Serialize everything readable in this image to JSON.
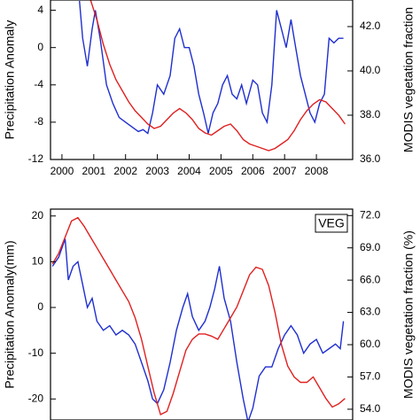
{
  "chart_data": [
    {
      "type": "line",
      "ylabel": "Precipitation Anomaly",
      "y2label": "MODIS vegetation fraction",
      "xlim": [
        1999.64,
        2009.14
      ],
      "xticks": [
        2000,
        2001,
        2002,
        2003,
        2004,
        2005,
        2006,
        2007,
        2008
      ],
      "ylim": [
        -12,
        5.1
      ],
      "yticks": [
        -12,
        -8,
        -4,
        0,
        4
      ],
      "y2lim": [
        36,
        43.2
      ],
      "y2ticks": [
        {
          "value": 36,
          "label": "36.0"
        },
        {
          "value": 38,
          "label": "38.0"
        },
        {
          "value": 40,
          "label": "40.0"
        },
        {
          "value": 42,
          "label": "42.0"
        }
      ],
      "series": [
        {
          "color": "#1f2fd0",
          "axis": "y",
          "x": [
            2000.55,
            2000.65,
            2000.8,
            2000.95,
            2001.05,
            2001.2,
            2001.4,
            2001.6,
            2001.8,
            2002.0,
            2002.2,
            2002.4,
            2002.55,
            2002.7,
            2002.85,
            2003.0,
            2003.2,
            2003.4,
            2003.55,
            2003.7,
            2003.85,
            2004.0,
            2004.15,
            2004.3,
            2004.45,
            2004.6,
            2004.75,
            2004.9,
            2005.05,
            2005.2,
            2005.35,
            2005.5,
            2005.65,
            2005.8,
            2006.0,
            2006.15,
            2006.3,
            2006.45,
            2006.6,
            2006.75,
            2006.9,
            2007.05,
            2007.2,
            2007.35,
            2007.5,
            2007.65,
            2007.8,
            2007.95,
            2008.1,
            2008.25,
            2008.4,
            2008.55,
            2008.7,
            2008.85
          ],
          "values": [
            5,
            1,
            -2,
            2,
            4,
            1,
            -4,
            -6,
            -7.5,
            -8,
            -8.5,
            -9,
            -8.8,
            -9.2,
            -7,
            -4,
            -5,
            -3,
            1,
            2,
            0,
            0,
            -2,
            -5,
            -7,
            -9.2,
            -7,
            -6,
            -4,
            -3,
            -5,
            -5.5,
            -4,
            -6,
            -3.5,
            -4,
            -7,
            -8,
            -4,
            4,
            2,
            0,
            3,
            0,
            -3,
            -5,
            -7,
            -8,
            -6,
            -5,
            1,
            0.5,
            1,
            1
          ]
        },
        {
          "color": "#e02020",
          "axis": "y2",
          "x": [
            2000.9,
            2001.1,
            2001.3,
            2001.5,
            2001.7,
            2001.9,
            2002.1,
            2002.3,
            2002.5,
            2002.7,
            2002.9,
            2003.1,
            2003.3,
            2003.5,
            2003.7,
            2003.9,
            2004.1,
            2004.3,
            2004.5,
            2004.7,
            2004.9,
            2005.1,
            2005.3,
            2005.5,
            2005.7,
            2005.9,
            2006.1,
            2006.3,
            2006.5,
            2006.7,
            2006.9,
            2007.1,
            2007.3,
            2007.5,
            2007.7,
            2007.9,
            2008.1,
            2008.3,
            2008.5,
            2008.7,
            2008.9
          ],
          "values": [
            43.2,
            42.3,
            41.2,
            40.3,
            39.6,
            39.1,
            38.6,
            38.2,
            37.9,
            37.6,
            37.4,
            37.5,
            37.8,
            38.1,
            38.3,
            38.1,
            37.8,
            37.4,
            37.2,
            37.1,
            37.3,
            37.5,
            37.6,
            37.3,
            36.9,
            36.7,
            36.6,
            36.5,
            36.4,
            36.5,
            36.7,
            36.9,
            37.3,
            37.8,
            38.2,
            38.5,
            38.7,
            38.6,
            38.3,
            38.0,
            37.6
          ]
        }
      ]
    },
    {
      "type": "line",
      "ylabel": "Precipitation Anomaly(mm)",
      "y2label": "MODIS vegetation fraction (%)",
      "annotation": "VEG",
      "xlim": [
        1999.64,
        2009.14
      ],
      "ylim": [
        -24.6,
        21.5
      ],
      "yticks": [
        -20,
        -10,
        0,
        10,
        20
      ],
      "y2lim": [
        53,
        72.6
      ],
      "y2ticks": [
        {
          "value": 54,
          "label": "54.0"
        },
        {
          "value": 57,
          "label": "57.0"
        },
        {
          "value": 60,
          "label": "60.0"
        },
        {
          "value": 63,
          "label": "63.0"
        },
        {
          "value": 66,
          "label": "66.0"
        },
        {
          "value": 69,
          "label": "69.0"
        },
        {
          "value": 72,
          "label": "72.0"
        }
      ],
      "series": [
        {
          "color": "#1f2fd0",
          "axis": "y",
          "x": [
            1999.7,
            1999.9,
            2000.1,
            2000.2,
            2000.35,
            2000.5,
            2000.65,
            2000.8,
            2000.95,
            2001.1,
            2001.3,
            2001.5,
            2001.7,
            2001.9,
            2002.1,
            2002.3,
            2002.5,
            2002.7,
            2002.85,
            2003.0,
            2003.2,
            2003.4,
            2003.6,
            2003.8,
            2003.95,
            2004.1,
            2004.3,
            2004.5,
            2004.65,
            2004.8,
            2004.95,
            2005.1,
            2005.3,
            2005.5,
            2005.7,
            2005.85,
            2006.0,
            2006.2,
            2006.4,
            2006.6,
            2006.8,
            2007.0,
            2007.2,
            2007.4,
            2007.6,
            2007.8,
            2008.0,
            2008.2,
            2008.4,
            2008.6,
            2008.75,
            2008.85
          ],
          "values": [
            9,
            11,
            15,
            6,
            9,
            10,
            5,
            0,
            2,
            -3,
            -5,
            -4,
            -6,
            -5,
            -6,
            -8,
            -12,
            -16,
            -20,
            -21,
            -18,
            -12,
            -5,
            0,
            3,
            -2,
            -5,
            -3,
            0,
            4,
            9,
            2,
            -3,
            -12,
            -20,
            -25,
            -22,
            -15,
            -13,
            -13,
            -9,
            -6,
            -4,
            -6,
            -10,
            -8,
            -7,
            -10,
            -9,
            -8,
            -9,
            -3
          ]
        },
        {
          "color": "#e02020",
          "axis": "y2",
          "x": [
            1999.7,
            1999.9,
            2000.1,
            2000.3,
            2000.5,
            2000.7,
            2000.9,
            2001.1,
            2001.3,
            2001.5,
            2001.7,
            2001.9,
            2002.1,
            2002.3,
            2002.5,
            2002.7,
            2002.9,
            2003.1,
            2003.3,
            2003.5,
            2003.7,
            2003.9,
            2004.1,
            2004.3,
            2004.5,
            2004.7,
            2004.9,
            2005.1,
            2005.3,
            2005.5,
            2005.7,
            2005.9,
            2006.1,
            2006.3,
            2006.5,
            2006.7,
            2006.9,
            2007.1,
            2007.3,
            2007.5,
            2007.7,
            2007.9,
            2008.1,
            2008.3,
            2008.5,
            2008.7,
            2008.9
          ],
          "values": [
            67.5,
            68.5,
            70,
            71.5,
            71.8,
            71,
            70,
            69,
            68,
            67,
            66,
            65,
            64,
            62.5,
            60.5,
            58,
            55.5,
            53.5,
            53.8,
            55.5,
            57.5,
            59.5,
            60.5,
            61,
            61,
            60.8,
            60.5,
            61.5,
            62.5,
            63.5,
            65,
            66.5,
            67.2,
            67,
            65.5,
            63,
            60,
            58,
            57,
            56.5,
            56.5,
            57,
            56,
            55,
            54.2,
            54.5,
            55
          ]
        }
      ]
    }
  ]
}
